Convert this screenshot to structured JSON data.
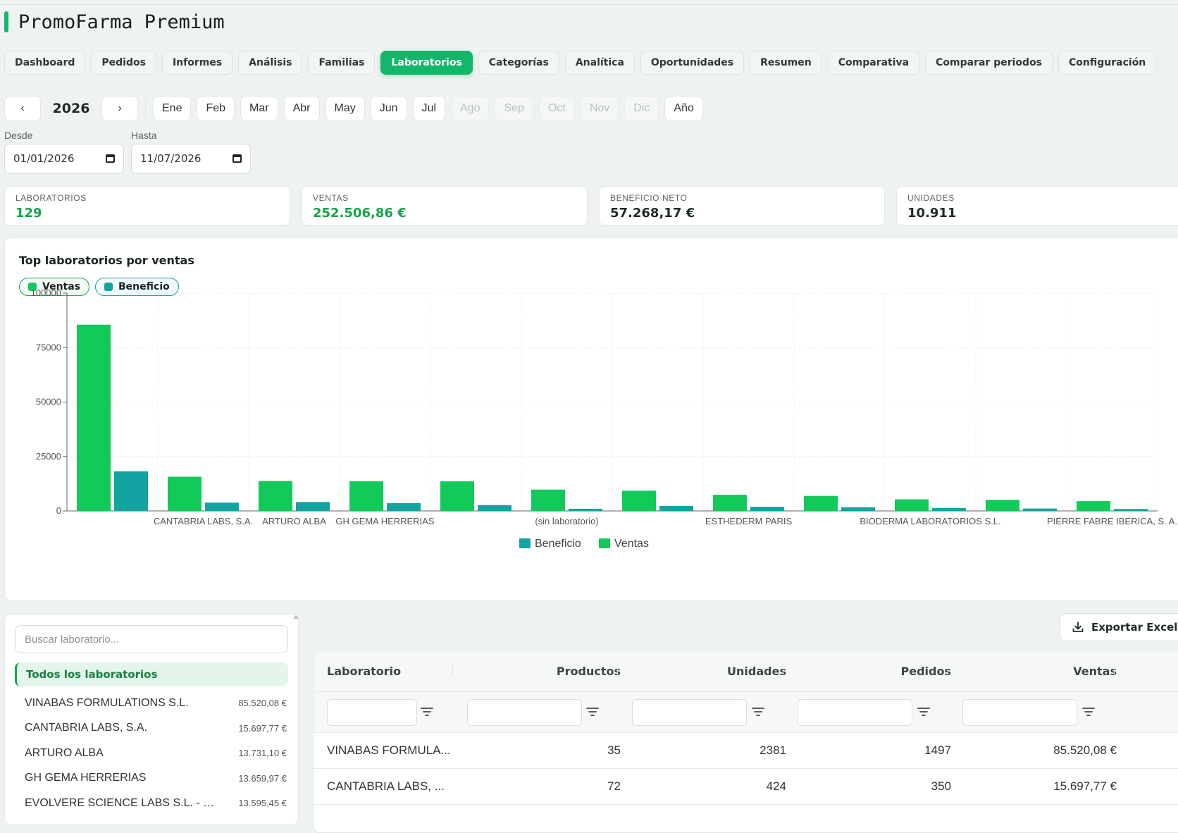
{
  "app": {
    "title": "PromoFarma Premium"
  },
  "tabs": [
    {
      "label": "Dashboard",
      "active": false
    },
    {
      "label": "Pedidos",
      "active": false
    },
    {
      "label": "Informes",
      "active": false
    },
    {
      "label": "Análisis",
      "active": false
    },
    {
      "label": "Familias",
      "active": false
    },
    {
      "label": "Laboratorios",
      "active": true
    },
    {
      "label": "Categorías",
      "active": false
    },
    {
      "label": "Analítica",
      "active": false
    },
    {
      "label": "Oportunidades",
      "active": false
    },
    {
      "label": "Resumen",
      "active": false
    },
    {
      "label": "Comparativa",
      "active": false
    },
    {
      "label": "Comparar periodos",
      "active": false
    },
    {
      "label": "Configuración",
      "active": false
    }
  ],
  "period": {
    "prev": "‹",
    "next": "›",
    "year": "2026",
    "months": [
      {
        "label": "Ene",
        "enabled": true
      },
      {
        "label": "Feb",
        "enabled": true
      },
      {
        "label": "Mar",
        "enabled": true
      },
      {
        "label": "Abr",
        "enabled": true
      },
      {
        "label": "May",
        "enabled": true
      },
      {
        "label": "Jun",
        "enabled": true
      },
      {
        "label": "Jul",
        "enabled": true
      },
      {
        "label": "Ago",
        "enabled": false
      },
      {
        "label": "Sep",
        "enabled": false
      },
      {
        "label": "Oct",
        "enabled": false
      },
      {
        "label": "Nov",
        "enabled": false
      },
      {
        "label": "Dic",
        "enabled": false
      }
    ],
    "year_button": "Año"
  },
  "dates": {
    "from_label": "Desde",
    "from_value": "01/01/2026",
    "to_label": "Hasta",
    "to_value": "11/07/2026"
  },
  "kpis": [
    {
      "label": "LABORATORIOS",
      "value": "129",
      "accent": "green"
    },
    {
      "label": "VENTAS",
      "value": "252.506,86 €",
      "accent": "green"
    },
    {
      "label": "BENEFICIO NETO",
      "value": "57.268,17 €",
      "accent": "dark"
    },
    {
      "label": "UNIDADES",
      "value": "10.911",
      "accent": "dark"
    }
  ],
  "chart": {
    "title": "Top laboratorios por ventas",
    "chips": [
      {
        "label": "Ventas",
        "color": "#12c95a"
      },
      {
        "label": "Beneficio",
        "color": "#13a3a1"
      }
    ]
  },
  "chart_data": {
    "type": "bar",
    "title": "Top laboratorios por ventas",
    "categories": [
      "VINABAS FORMULATIONS S.L.",
      "CANTABRIA LABS, S.A.",
      "ARTURO ALBA",
      "GH GEMA HERRERIAS",
      "EVOLVERE SCIENCE LABS S.L.",
      "(sin laboratorio)",
      "",
      "ESTHEDERM PARIS",
      "",
      "BIODERMA LABORATORIOS S.L.",
      "",
      "PIERRE FABRE IBERICA, S. A."
    ],
    "tick_labels": [
      "",
      "CANTABRIA LABS, S.A.",
      "ARTURO ALBA",
      "GH GEMA HERRERIAS",
      "",
      "(sin laboratorio)",
      "",
      "ESTHEDERM PARIS",
      "",
      "BIODERMA LABORATORIOS S.L.",
      "",
      "PIERRE FABRE IBERICA, S. A."
    ],
    "series": [
      {
        "name": "Ventas",
        "color": "#12c95a",
        "values": [
          85520.08,
          15697.77,
          13731.1,
          13659.97,
          13595.45,
          9800,
          9300,
          7400,
          6900,
          5300,
          5100,
          4500
        ]
      },
      {
        "name": "Beneficio",
        "color": "#13a3a1",
        "values": [
          18200,
          3800,
          4100,
          3600,
          2700,
          1000,
          2300,
          1900,
          1700,
          1300,
          1100,
          900
        ]
      }
    ],
    "ylim": [
      0,
      100000
    ],
    "yticks": [
      "0",
      "25000",
      "50000",
      "75000",
      "100000"
    ],
    "legend": [
      {
        "label": "Beneficio",
        "color": "#13a3a1"
      },
      {
        "label": "Ventas",
        "color": "#12c95a"
      }
    ],
    "legend_position": "bottom",
    "grid": true
  },
  "sidebar": {
    "search_placeholder": "Buscar laboratorio...",
    "all_label": "Todos los laboratorios",
    "items": [
      {
        "name": "VINABAS FORMULATIONS S.L.",
        "value": "85.520,08 €"
      },
      {
        "name": "CANTABRIA LABS, S.A.",
        "value": "15.697,77 €"
      },
      {
        "name": "ARTURO ALBA",
        "value": "13.731,10 €"
      },
      {
        "name": "GH GEMA HERRERIAS",
        "value": "13.659,97 €"
      },
      {
        "name": "EVOLVERE SCIENCE LABS S.L. - K...",
        "value": "13.595,45 €"
      }
    ]
  },
  "export": {
    "label": "Exportar Excel",
    "icon": "download-icon"
  },
  "table": {
    "columns": [
      "Laboratorio",
      "Productos",
      "Unidades",
      "Pedidos",
      "Ventas"
    ],
    "rows": [
      {
        "lab": "VINABAS FORMULA...",
        "productos": "35",
        "unidades": "2381",
        "pedidos": "1497",
        "ventas": "85.520,08 €"
      },
      {
        "lab": "CANTABRIA LABS, ...",
        "productos": "72",
        "unidades": "424",
        "pedidos": "350",
        "ventas": "15.697,77 €"
      }
    ]
  }
}
